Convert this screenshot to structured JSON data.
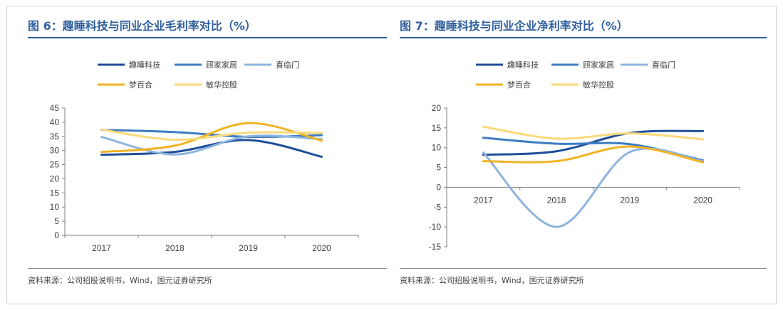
{
  "panels": [
    {
      "title": "图 6：趣睡科技与同业企业毛利率对比（%）",
      "source": "资料来源：公司招股说明书，Wind，国元证券研究所"
    },
    {
      "title": "图 7：趣睡科技与同业企业净利率对比（%）",
      "source": "资料来源：公司招股说明书，Wind，国元证券研究所"
    }
  ],
  "chart_data": [
    {
      "type": "line",
      "title": "",
      "categories": [
        "2017",
        "2018",
        "2019",
        "2020"
      ],
      "ylim": [
        0,
        45
      ],
      "yticks": [
        0,
        5,
        10,
        15,
        20,
        25,
        30,
        35,
        40,
        45
      ],
      "grid": false,
      "legend_position": "top",
      "series": [
        {
          "name": "趣睡科技",
          "color": "#1f4e9a",
          "values": [
            28.5,
            29.5,
            33.7,
            27.8
          ]
        },
        {
          "name": "顾家家居",
          "color": "#3d7cc2",
          "values": [
            37.3,
            36.5,
            34.8,
            35.4
          ]
        },
        {
          "name": "喜临门",
          "color": "#8fb4de",
          "values": [
            34.8,
            28.6,
            35.0,
            34.0
          ]
        },
        {
          "name": "梦百合",
          "color": "#f0b323",
          "values": [
            29.5,
            31.7,
            39.7,
            33.5
          ]
        },
        {
          "name": "敏华控股",
          "color": "#fad97a",
          "values": [
            37.4,
            33.8,
            36.3,
            36.2
          ]
        }
      ]
    },
    {
      "type": "line",
      "title": "",
      "categories": [
        "2017",
        "2018",
        "2019",
        "2020"
      ],
      "ylim": [
        -15,
        20
      ],
      "yticks": [
        -15,
        -10,
        -5,
        0,
        5,
        10,
        15,
        20
      ],
      "grid": false,
      "legend_position": "top",
      "series": [
        {
          "name": "趣睡科技",
          "color": "#1f4e9a",
          "values": [
            8.2,
            9.1,
            13.7,
            14.2
          ]
        },
        {
          "name": "顾家家居",
          "color": "#3d7cc2",
          "values": [
            12.5,
            11.0,
            10.9,
            6.8
          ]
        },
        {
          "name": "喜临门",
          "color": "#8fb4de",
          "values": [
            8.8,
            -10.0,
            8.9,
            6.6
          ]
        },
        {
          "name": "梦百合",
          "color": "#f0b323",
          "values": [
            6.6,
            6.6,
            10.3,
            6.3
          ]
        },
        {
          "name": "敏华控股",
          "color": "#fad97a",
          "values": [
            15.3,
            12.3,
            13.6,
            12.1
          ]
        }
      ]
    }
  ]
}
